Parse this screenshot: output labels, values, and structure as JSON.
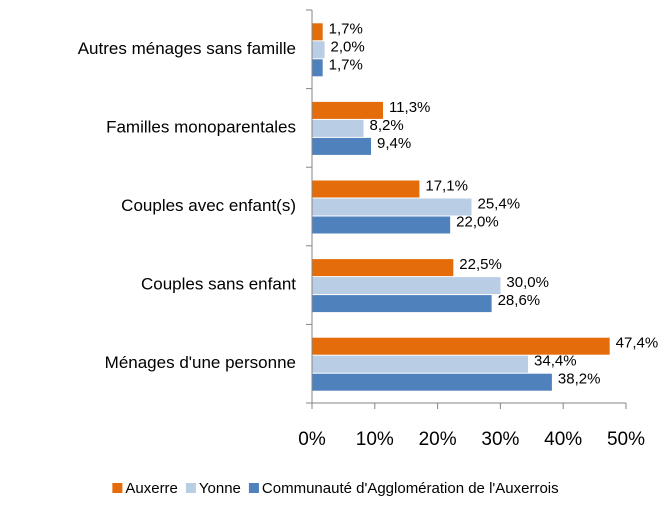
{
  "chart_data": {
    "type": "barh",
    "categories": [
      "Autres ménages sans famille",
      "Familles monoparentales",
      "Couples avec enfant(s)",
      "Couples sans enfant",
      "Ménages d'une personne"
    ],
    "series": [
      {
        "name": "Auxerre",
        "color": "#E46C0A",
        "values": [
          1.7,
          11.3,
          17.1,
          22.5,
          47.4
        ],
        "value_labels": [
          "1,7%",
          "11,3%",
          "17,1%",
          "22,5%",
          "47,4%"
        ]
      },
      {
        "name": "Yonne",
        "color": "#B9CDE5",
        "values": [
          2.0,
          8.2,
          25.4,
          30.0,
          34.4
        ],
        "value_labels": [
          "2,0%",
          "8,2%",
          "25,4%",
          "30,0%",
          "34,4%"
        ]
      },
      {
        "name": "Communauté d'Agglomération de l'Auxerrois",
        "color": "#4F81BD",
        "values": [
          1.7,
          9.4,
          22.0,
          28.6,
          38.2
        ],
        "value_labels": [
          "1,7%",
          "9,4%",
          "22,0%",
          "28,6%",
          "38,2%"
        ]
      }
    ],
    "xlim": [
      0,
      50
    ],
    "xticks": [
      {
        "value": 0,
        "label": "0%"
      },
      {
        "value": 10,
        "label": "10%"
      },
      {
        "value": 20,
        "label": "20%"
      },
      {
        "value": 30,
        "label": "30%"
      },
      {
        "value": 40,
        "label": "40%"
      },
      {
        "value": 50,
        "label": "50%"
      }
    ],
    "legend": "bottom"
  }
}
